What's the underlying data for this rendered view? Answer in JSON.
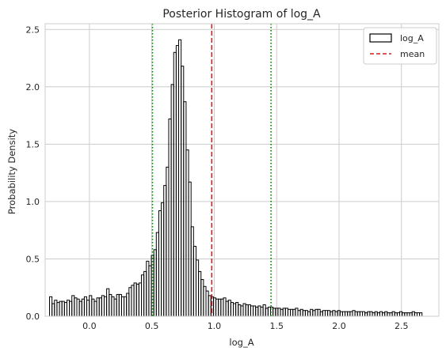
{
  "chart_data": {
    "type": "histogram",
    "title": "Posterior Histogram of log_A",
    "xlabel": "log_A",
    "ylabel": "Probability Density",
    "xlim": [
      -0.355,
      2.8
    ],
    "ylim": [
      0,
      2.55
    ],
    "xticks": [
      0.0,
      0.5,
      1.0,
      1.5,
      2.0,
      2.5
    ],
    "xtick_labels": [
      "0.0",
      "0.5",
      "1.0",
      "1.5",
      "2.0",
      "2.5"
    ],
    "yticks": [
      0.0,
      0.5,
      1.0,
      1.5,
      2.0,
      2.5
    ],
    "ytick_labels": [
      "0.0",
      "0.5",
      "1.0",
      "1.5",
      "2.0",
      "2.5"
    ],
    "grid": true,
    "legend_position": "top-right",
    "bin_start": -0.32,
    "bin_width": 0.0199,
    "densities": [
      0.17,
      0.11,
      0.14,
      0.12,
      0.13,
      0.13,
      0.12,
      0.14,
      0.13,
      0.18,
      0.16,
      0.15,
      0.13,
      0.15,
      0.17,
      0.14,
      0.18,
      0.15,
      0.13,
      0.16,
      0.16,
      0.18,
      0.17,
      0.24,
      0.19,
      0.17,
      0.15,
      0.19,
      0.19,
      0.17,
      0.17,
      0.2,
      0.25,
      0.27,
      0.29,
      0.28,
      0.29,
      0.36,
      0.39,
      0.48,
      0.44,
      0.53,
      0.58,
      0.73,
      0.92,
      0.99,
      1.14,
      1.3,
      1.72,
      2.02,
      2.3,
      2.36,
      2.41,
      2.18,
      1.87,
      1.45,
      1.17,
      0.78,
      0.61,
      0.49,
      0.39,
      0.32,
      0.26,
      0.22,
      0.18,
      0.17,
      0.16,
      0.15,
      0.15,
      0.15,
      0.16,
      0.13,
      0.14,
      0.12,
      0.11,
      0.12,
      0.1,
      0.09,
      0.11,
      0.1,
      0.1,
      0.09,
      0.09,
      0.08,
      0.09,
      0.08,
      0.1,
      0.07,
      0.08,
      0.08,
      0.07,
      0.07,
      0.07,
      0.06,
      0.07,
      0.07,
      0.06,
      0.06,
      0.06,
      0.07,
      0.05,
      0.06,
      0.05,
      0.05,
      0.04,
      0.06,
      0.05,
      0.06,
      0.06,
      0.04,
      0.05,
      0.05,
      0.05,
      0.04,
      0.05,
      0.04,
      0.05,
      0.04,
      0.04,
      0.04,
      0.04,
      0.04,
      0.05,
      0.04,
      0.04,
      0.04,
      0.04,
      0.03,
      0.04,
      0.04,
      0.03,
      0.04,
      0.03,
      0.04,
      0.03,
      0.04,
      0.03,
      0.03,
      0.04,
      0.03,
      0.03,
      0.04,
      0.03,
      0.03,
      0.03,
      0.03,
      0.04,
      0.03,
      0.03,
      0.03
    ],
    "reference_lines": [
      {
        "name": "mean",
        "x": 0.98,
        "color": "#e41a1c",
        "style": "dashed"
      },
      {
        "name": "",
        "x": 0.505,
        "color": "#008000",
        "style": "dotted"
      },
      {
        "name": "",
        "x": 1.455,
        "color": "#008000",
        "style": "dotted"
      }
    ],
    "series": [
      {
        "name": "log_A",
        "style": "step",
        "edge_color": "#000000",
        "fill": "none"
      },
      {
        "name": "mean",
        "style": "dashed-line",
        "color": "#e41a1c"
      }
    ],
    "colors": {
      "grid": "#cccccc",
      "spine": "#cccccc",
      "bars": "#000000",
      "mean": "#e41a1c",
      "interval": "#008000"
    }
  }
}
